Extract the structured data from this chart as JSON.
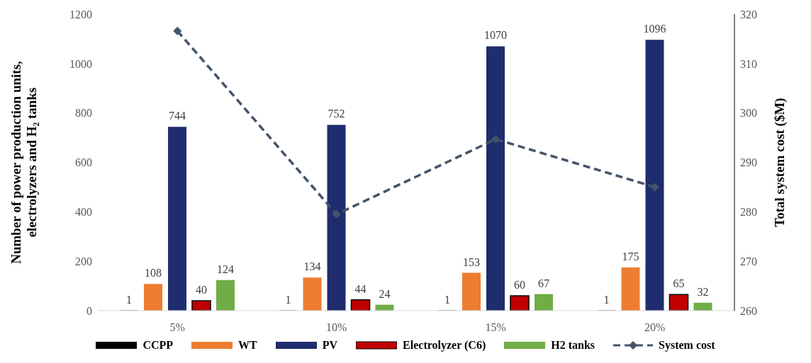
{
  "chart_data": {
    "type": "bar",
    "categories": [
      "5%",
      "10%",
      "15%",
      "20%"
    ],
    "ylabel": "Number of power production units, electrolyzers and H₂ tanks",
    "y2label": "Total system cost ($M)",
    "ylim": [
      0,
      1200
    ],
    "yticks": [
      0,
      200,
      400,
      600,
      800,
      1000,
      1200
    ],
    "y2lim": [
      260,
      320
    ],
    "y2ticks": [
      260,
      270,
      280,
      290,
      300,
      310,
      320
    ],
    "series": [
      {
        "name": "CCPP",
        "color": "#000000",
        "values": [
          1,
          1,
          1,
          1
        ],
        "value_labels": [
          "1",
          "1",
          "1",
          "1"
        ]
      },
      {
        "name": "WT",
        "color": "#ed7d31",
        "values": [
          108,
          134,
          153,
          175
        ],
        "value_labels": [
          "108",
          "134",
          "153",
          "175"
        ]
      },
      {
        "name": "PV",
        "color": "#1f2d6e",
        "values": [
          744,
          752,
          1070,
          1096
        ],
        "value_labels": [
          "744",
          "752",
          "1070",
          "1096"
        ]
      },
      {
        "name": "Electrolyzer (C6)",
        "color": "#c00000",
        "values": [
          40,
          44,
          60,
          65
        ],
        "value_labels": [
          "40",
          "44",
          "60",
          "65"
        ]
      },
      {
        "name": "H2 tanks",
        "color": "#70ad47",
        "values": [
          124,
          24,
          67,
          32
        ],
        "value_labels": [
          "124",
          "24",
          "67",
          "32"
        ]
      },
      {
        "name": "System cost",
        "type": "line",
        "axis": "y2",
        "color": "#44546a",
        "values": [
          316.6,
          279.5,
          294.7,
          285
        ],
        "marker": "diamond",
        "line_style": "dashed"
      }
    ],
    "grid": false,
    "legend": "bottom"
  }
}
